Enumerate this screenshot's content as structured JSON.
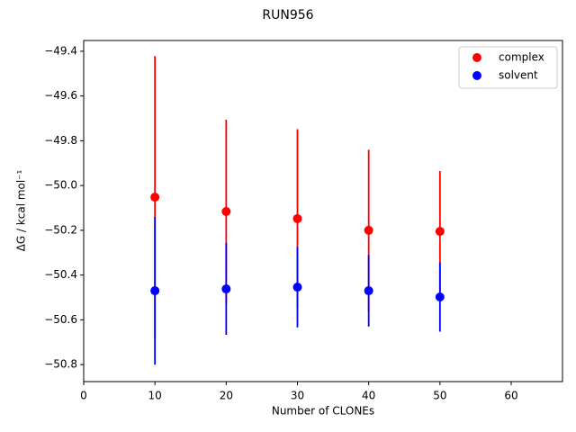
{
  "chart_data": {
    "type": "scatter",
    "title": "RUN956",
    "xlabel": "Number of CLONEs",
    "ylabel": "ΔG / kcal mol⁻¹",
    "x": [
      10,
      20,
      30,
      40,
      50
    ],
    "series": [
      {
        "name": "complex",
        "color": "#ff0000",
        "values": [
          -50.052,
          -50.116,
          -50.148,
          -50.2,
          -50.205
        ],
        "errors": [
          0.63,
          0.41,
          0.4,
          0.36,
          0.27
        ]
      },
      {
        "name": "solvent",
        "color": "#0000ff",
        "values": [
          -50.47,
          -50.462,
          -50.454,
          -50.47,
          -50.498
        ],
        "errors": [
          0.33,
          0.205,
          0.18,
          0.16,
          0.155
        ]
      }
    ],
    "xlim": [
      0,
      67.2
    ],
    "ylim": [
      -50.876,
      -49.352
    ],
    "xticks": [
      0,
      10,
      20,
      30,
      40,
      50,
      60
    ],
    "yticks": [
      {
        "value": -50.8,
        "label": "−50.8"
      },
      {
        "value": -50.6,
        "label": "−50.6"
      },
      {
        "value": -50.4,
        "label": "−50.4"
      },
      {
        "value": -50.2,
        "label": "−50.2"
      },
      {
        "value": -50.0,
        "label": "−50.0"
      },
      {
        "value": -49.8,
        "label": "−49.8"
      },
      {
        "value": -49.6,
        "label": "−49.6"
      },
      {
        "value": -49.4,
        "label": "−49.4"
      }
    ],
    "legend": "upper right",
    "grid": false
  }
}
